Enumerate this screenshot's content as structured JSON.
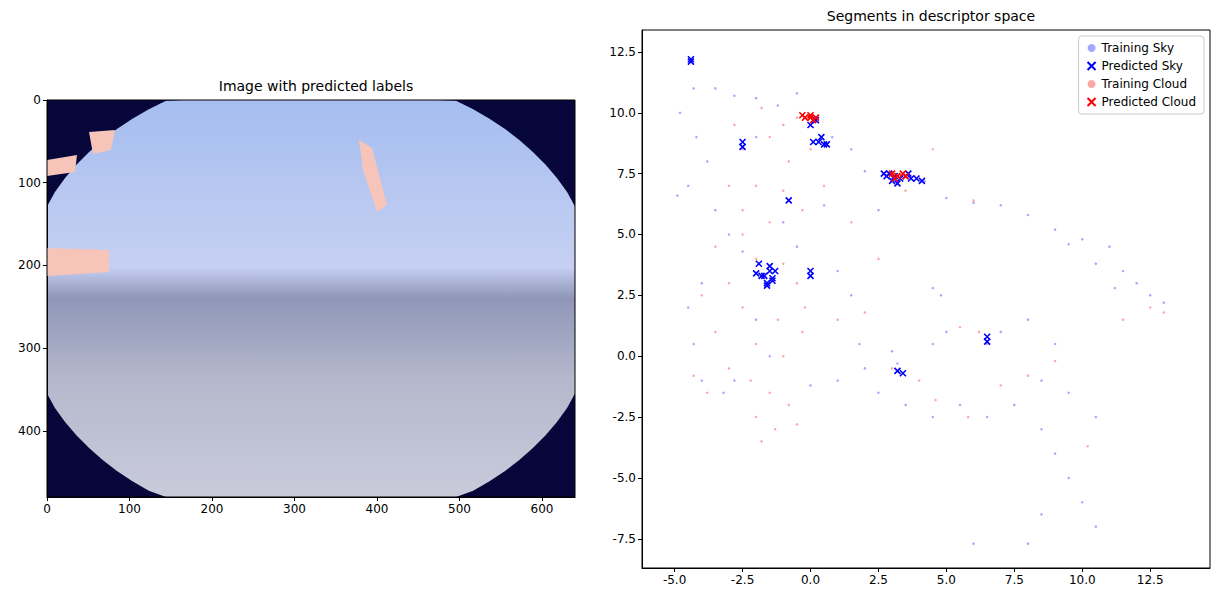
{
  "chart_data": [
    {
      "type": "image",
      "title": "Image with predicted labels",
      "xlim": [
        0,
        640
      ],
      "ylim": [
        480,
        0
      ],
      "xticks": [
        0,
        100,
        200,
        300,
        400,
        500,
        600
      ],
      "yticks": [
        0,
        100,
        200,
        300,
        400
      ],
      "grid": false
    },
    {
      "type": "scatter",
      "title": "Segments in descriptor space",
      "xlim": [
        -6.2,
        14.7
      ],
      "ylim": [
        -8.7,
        13.4
      ],
      "xticks": [
        {
          "value": -5,
          "label": "-5.0"
        },
        -2.5,
        {
          "value": 0,
          "label": "0.0"
        },
        2.5,
        {
          "value": 5,
          "label": "5.0"
        },
        7.5,
        {
          "value": 10,
          "label": "10.0"
        },
        12.5
      ],
      "yticks": [
        -7.5,
        {
          "value": -5,
          "label": "-5.0"
        },
        -2.5,
        {
          "value": 0,
          "label": "0.0"
        },
        2.5,
        {
          "value": 5,
          "label": "5.0"
        },
        7.5,
        {
          "value": 10,
          "label": "10.0"
        },
        12.5
      ],
      "grid": false,
      "legend": "upper right",
      "series": [
        {
          "name": "Training Sky",
          "color": "#0000ff",
          "marker": "point",
          "values": [
            [
              -4.3,
              11.0
            ],
            [
              -3.5,
              11.0
            ],
            [
              -2.8,
              10.7
            ],
            [
              -2.0,
              10.6
            ],
            [
              -1.2,
              10.3
            ],
            [
              -4.8,
              10.0
            ],
            [
              -4.2,
              9.0
            ],
            [
              -3.8,
              8.0
            ],
            [
              -4.5,
              7.0
            ],
            [
              -4.9,
              6.6
            ],
            [
              -3.5,
              6.0
            ],
            [
              -3.0,
              5.0
            ],
            [
              -2.5,
              4.3
            ],
            [
              -4.0,
              3.0
            ],
            [
              -4.5,
              2.0
            ],
            [
              -4.3,
              0.5
            ],
            [
              -4.0,
              -1.0
            ],
            [
              -3.2,
              -1.5
            ],
            [
              -2.0,
              9.0
            ],
            [
              -0.5,
              10.8
            ],
            [
              0.0,
              9.5
            ],
            [
              0.8,
              9.0
            ],
            [
              1.5,
              8.5
            ],
            [
              2.0,
              7.6
            ],
            [
              4.2,
              7.2
            ],
            [
              5.0,
              6.5
            ],
            [
              6.0,
              6.3
            ],
            [
              7.0,
              6.2
            ],
            [
              8.0,
              5.8
            ],
            [
              9.0,
              5.2
            ],
            [
              10.0,
              4.8
            ],
            [
              11.0,
              4.5
            ],
            [
              11.5,
              3.5
            ],
            [
              12.0,
              3.0
            ],
            [
              12.5,
              2.5
            ],
            [
              13.0,
              2.2
            ],
            [
              11.2,
              2.8
            ],
            [
              10.5,
              3.8
            ],
            [
              9.5,
              4.6
            ],
            [
              4.5,
              2.8
            ],
            [
              4.8,
              2.5
            ],
            [
              5.0,
              1.0
            ],
            [
              4.5,
              0.5
            ],
            [
              3.0,
              0.2
            ],
            [
              2.0,
              -0.5
            ],
            [
              1.0,
              -1.0
            ],
            [
              0.0,
              -1.2
            ],
            [
              2.5,
              -1.5
            ],
            [
              3.5,
              -2.0
            ],
            [
              4.5,
              -2.5
            ],
            [
              5.5,
              -2.0
            ],
            [
              6.5,
              -2.5
            ],
            [
              7.5,
              -2.0
            ],
            [
              8.5,
              -1.0
            ],
            [
              9.5,
              -1.5
            ],
            [
              10.5,
              -2.5
            ],
            [
              8.5,
              -3.0
            ],
            [
              9.0,
              -4.0
            ],
            [
              9.5,
              -5.0
            ],
            [
              10.0,
              -6.0
            ],
            [
              10.5,
              -7.0
            ],
            [
              8.0,
              -7.7
            ],
            [
              8.5,
              -6.5
            ],
            [
              6.0,
              -7.7
            ],
            [
              6.5,
              0.5
            ],
            [
              7.0,
              1.0
            ],
            [
              8.0,
              1.5
            ],
            [
              9.0,
              0.5
            ],
            [
              -1.0,
              5.5
            ],
            [
              -0.5,
              4.5
            ],
            [
              0.5,
              6.2
            ],
            [
              1.0,
              3.5
            ],
            [
              1.5,
              2.5
            ],
            [
              -2.0,
              1.5
            ],
            [
              -1.5,
              0.0
            ],
            [
              -2.8,
              -1.0
            ],
            [
              2.5,
              6.0
            ],
            [
              1.8,
              0.5
            ],
            [
              3.2,
              -0.3
            ]
          ]
        },
        {
          "name": "Predicted Sky",
          "color": "#0000ff",
          "marker": "x",
          "values": [
            [
              -4.4,
              12.2
            ],
            [
              -4.4,
              12.1
            ],
            [
              -2.5,
              8.8
            ],
            [
              -2.5,
              8.6
            ],
            [
              -0.8,
              6.4
            ],
            [
              0.0,
              9.5
            ],
            [
              0.2,
              9.7
            ],
            [
              0.3,
              8.8
            ],
            [
              0.5,
              8.7
            ],
            [
              0.4,
              9.0
            ],
            [
              0.6,
              8.7
            ],
            [
              0.1,
              8.8
            ],
            [
              2.7,
              7.5
            ],
            [
              2.9,
              7.5
            ],
            [
              3.1,
              7.4
            ],
            [
              3.3,
              7.3
            ],
            [
              3.5,
              7.4
            ],
            [
              3.7,
              7.3
            ],
            [
              3.9,
              7.3
            ],
            [
              4.1,
              7.2
            ],
            [
              3.0,
              7.2
            ],
            [
              3.2,
              7.1
            ],
            [
              3.6,
              7.5
            ],
            [
              2.8,
              7.4
            ],
            [
              -1.9,
              3.8
            ],
            [
              -2.0,
              3.4
            ],
            [
              -1.7,
              3.3
            ],
            [
              -1.5,
              3.5
            ],
            [
              -1.4,
              3.2
            ],
            [
              -1.6,
              3.0
            ],
            [
              -1.3,
              3.5
            ],
            [
              -1.5,
              3.7
            ],
            [
              -1.8,
              3.3
            ],
            [
              -1.6,
              2.9
            ],
            [
              -1.4,
              3.1
            ],
            [
              0.0,
              3.5
            ],
            [
              0.0,
              3.3
            ],
            [
              6.5,
              0.8
            ],
            [
              6.5,
              0.6
            ],
            [
              3.2,
              -0.6
            ],
            [
              3.4,
              -0.7
            ]
          ]
        },
        {
          "name": "Training Cloud",
          "color": "#ff0000",
          "marker": "point",
          "values": [
            [
              -0.5,
              9.8
            ],
            [
              0.0,
              8.5
            ],
            [
              -0.8,
              8.0
            ],
            [
              -1.5,
              9.0
            ],
            [
              -2.5,
              8.5
            ],
            [
              -3.0,
              7.0
            ],
            [
              -2.0,
              7.0
            ],
            [
              -1.0,
              6.8
            ],
            [
              -0.3,
              6.0
            ],
            [
              -1.5,
              5.5
            ],
            [
              -2.5,
              5.0
            ],
            [
              -3.5,
              4.5
            ],
            [
              -2.0,
              4.0
            ],
            [
              -1.0,
              3.8
            ],
            [
              -0.5,
              3.0
            ],
            [
              -3.0,
              3.0
            ],
            [
              -4.0,
              2.5
            ],
            [
              -2.5,
              2.0
            ],
            [
              -1.2,
              1.5
            ],
            [
              -0.3,
              1.0
            ],
            [
              -3.5,
              1.0
            ],
            [
              -2.0,
              0.5
            ],
            [
              -1.0,
              0.0
            ],
            [
              -3.0,
              -0.5
            ],
            [
              -2.2,
              -1.0
            ],
            [
              -1.5,
              -1.5
            ],
            [
              -0.8,
              -2.0
            ],
            [
              -2.0,
              -2.5
            ],
            [
              -1.3,
              -3.0
            ],
            [
              -1.8,
              -3.5
            ],
            [
              -0.5,
              -2.8
            ],
            [
              -3.8,
              -1.5
            ],
            [
              -4.3,
              -0.8
            ],
            [
              -2.8,
              9.5
            ],
            [
              -1.8,
              10.2
            ],
            [
              0.5,
              7.0
            ],
            [
              1.5,
              5.5
            ],
            [
              1.0,
              1.5
            ],
            [
              2.0,
              1.8
            ],
            [
              3.0,
              -0.5
            ],
            [
              5.5,
              1.2
            ],
            [
              6.2,
              1.0
            ],
            [
              4.0,
              -1.0
            ],
            [
              4.6,
              -1.8
            ],
            [
              7.0,
              -1.2
            ],
            [
              8.0,
              -0.8
            ],
            [
              10.2,
              -3.7
            ],
            [
              11.5,
              1.5
            ],
            [
              12.5,
              2.0
            ],
            [
              13.0,
              1.8
            ],
            [
              6.0,
              6.4
            ],
            [
              4.5,
              8.5
            ],
            [
              3.5,
              6.8
            ],
            [
              -4.4,
              12.2
            ],
            [
              -2.5,
              6.0
            ],
            [
              -0.2,
              2.0
            ],
            [
              -1.0,
              9.5
            ],
            [
              2.5,
              4.0
            ],
            [
              9.0,
              -0.2
            ],
            [
              5.8,
              -2.5
            ]
          ]
        },
        {
          "name": "Predicted Cloud",
          "color": "#ff0000",
          "marker": "x",
          "values": [
            [
              -0.3,
              9.9
            ],
            [
              -0.2,
              9.8
            ],
            [
              0.0,
              9.8
            ],
            [
              0.1,
              9.7
            ],
            [
              0.2,
              9.8
            ],
            [
              0.0,
              9.9
            ],
            [
              3.0,
              7.5
            ],
            [
              3.2,
              7.4
            ],
            [
              3.4,
              7.5
            ],
            [
              3.1,
              7.3
            ],
            [
              3.5,
              7.4
            ]
          ]
        }
      ]
    }
  ]
}
